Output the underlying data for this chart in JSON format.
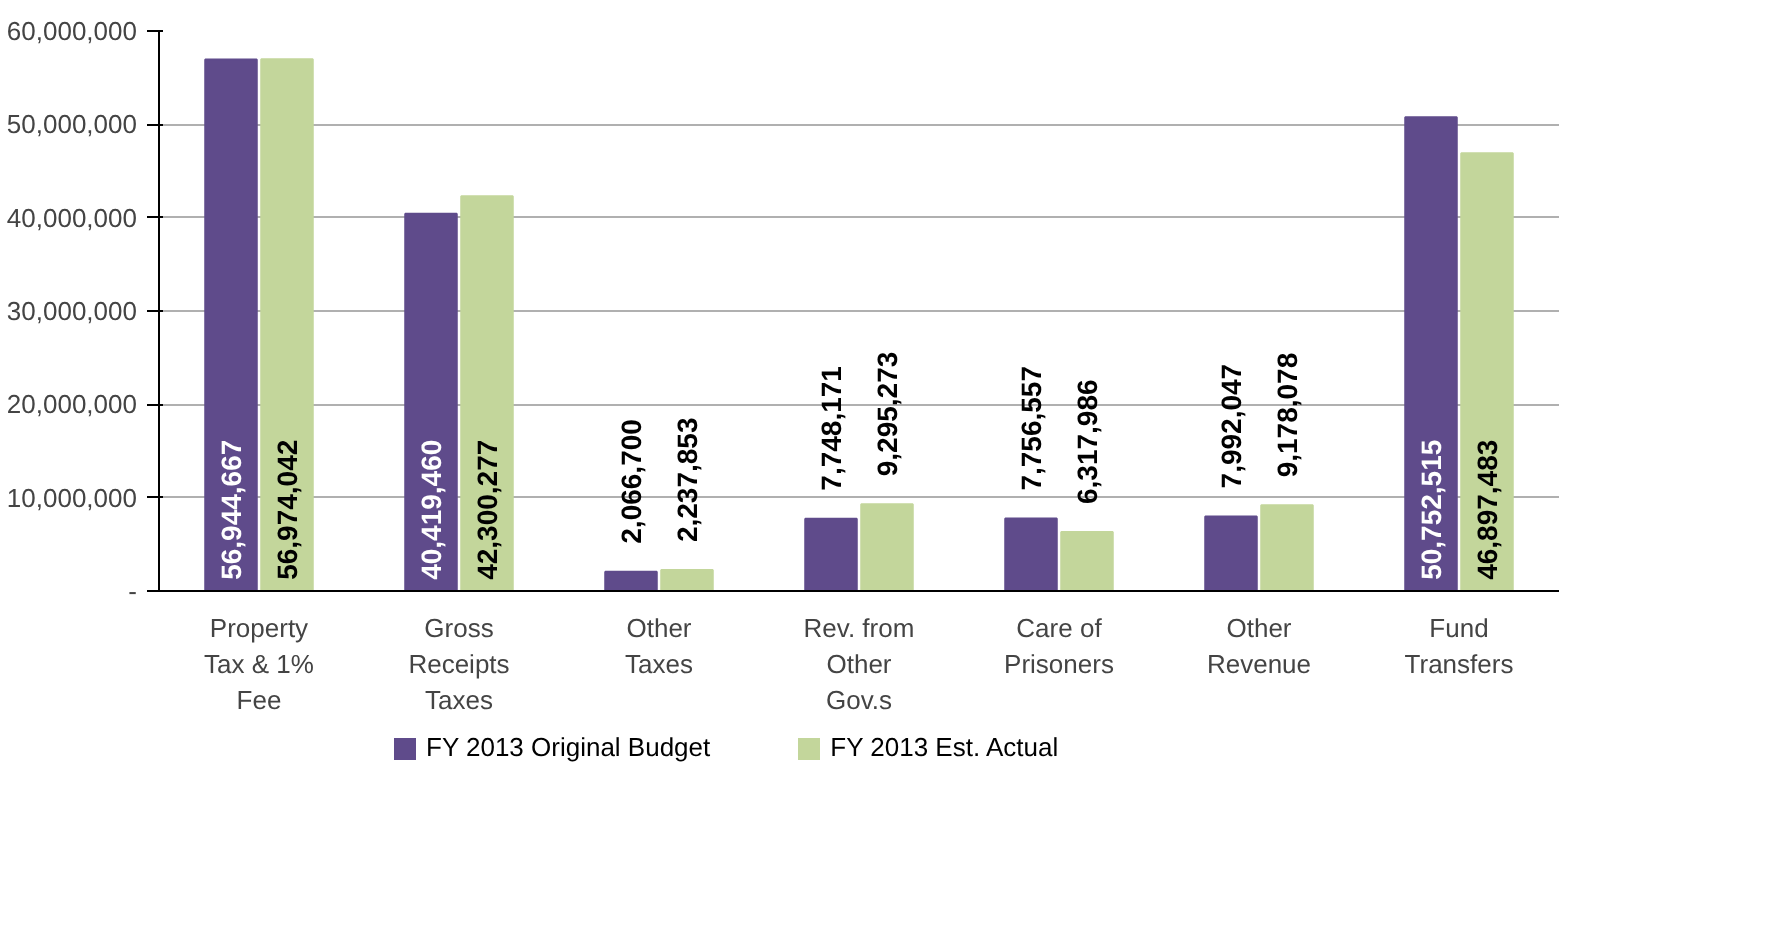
{
  "chart_data": {
    "type": "bar",
    "categories": [
      "Property Tax & 1% Fee",
      "Gross Receipts Taxes",
      "Other Taxes",
      "Rev. from Other Gov.s",
      "Care of Prisoners",
      "Other Revenue",
      "Fund Transfers"
    ],
    "series": [
      {
        "name": "FY 2013 Original Budget",
        "color": "#5f4b8b",
        "values": [
          56944667,
          40419460,
          2066700,
          7748171,
          7756557,
          7992047,
          50752515
        ],
        "value_labels": [
          "56,944,667",
          "40,419,460",
          "2,066,700",
          "7,748,171",
          "7,756,557",
          "7,992,047",
          "50,752,515"
        ]
      },
      {
        "name": "FY 2013 Est. Actual",
        "color": "#c3d69b",
        "values": [
          56974042,
          42300277,
          2237853,
          9295273,
          6317986,
          9178078,
          46897483
        ],
        "value_labels": [
          "56,974,042",
          "42,300,277",
          "2,237,853",
          "9,295,273",
          "6,317,986",
          "9,178,078",
          "46,897,483"
        ]
      }
    ],
    "ylim": [
      0,
      60000000
    ],
    "yticks": [
      {
        "value": 0,
        "label": "-"
      },
      {
        "value": 10000000,
        "label": "10,000,000"
      },
      {
        "value": 20000000,
        "label": "20,000,000"
      },
      {
        "value": 30000000,
        "label": "30,000,000"
      },
      {
        "value": 40000000,
        "label": "40,000,000"
      },
      {
        "value": 50000000,
        "label": "50,000,000"
      },
      {
        "value": 60000000,
        "label": "60,000,000"
      }
    ],
    "grid": "y",
    "legend": "bottom"
  }
}
